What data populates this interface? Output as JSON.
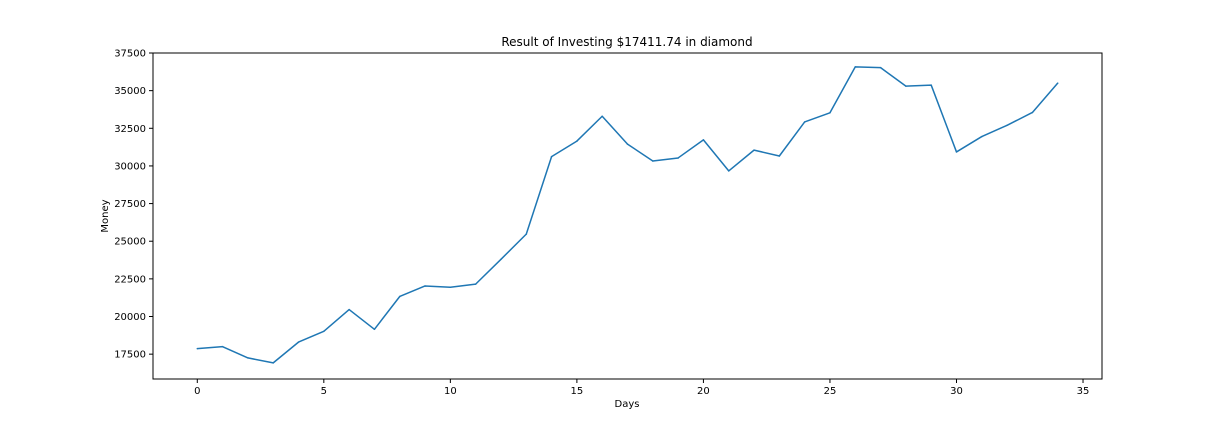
{
  "chart_data": {
    "type": "line",
    "title": "Result of Investing $17411.74 in diamond",
    "xlabel": "Days",
    "ylabel": "Money",
    "xlim": [
      -1.75,
      35.75
    ],
    "ylim": [
      15850,
      37500
    ],
    "x_ticks": [
      0,
      5,
      10,
      15,
      20,
      25,
      30,
      35
    ],
    "y_ticks": [
      17500,
      20000,
      22500,
      25000,
      27500,
      30000,
      32500,
      35000,
      37500
    ],
    "grid": false,
    "legend": "none",
    "series": [
      {
        "color": "#1f77b4",
        "x": [
          0,
          1,
          2,
          3,
          4,
          5,
          6,
          7,
          8,
          9,
          10,
          11,
          12,
          13,
          14,
          15,
          16,
          17,
          18,
          19,
          20,
          21,
          22,
          23,
          24,
          25,
          26,
          27,
          28,
          29,
          30,
          31,
          32,
          33,
          34
        ],
        "values": [
          17870,
          18000,
          17250,
          16920,
          18300,
          19020,
          20460,
          19150,
          21330,
          22030,
          21940,
          22150,
          23800,
          25470,
          30620,
          31650,
          33300,
          31450,
          30330,
          30530,
          31730,
          29670,
          31050,
          30660,
          32920,
          33530,
          36580,
          36530,
          35300,
          35370,
          30930,
          31950,
          32700,
          33550,
          35500
        ]
      }
    ]
  }
}
